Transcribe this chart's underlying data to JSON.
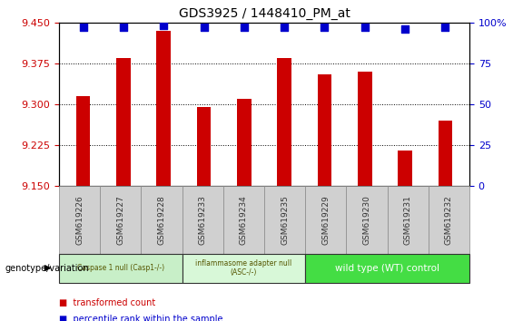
{
  "title": "GDS3925 / 1448410_PM_at",
  "samples": [
    "GSM619226",
    "GSM619227",
    "GSM619228",
    "GSM619233",
    "GSM619234",
    "GSM619235",
    "GSM619229",
    "GSM619230",
    "GSM619231",
    "GSM619232"
  ],
  "red_values": [
    9.315,
    9.385,
    9.435,
    9.295,
    9.31,
    9.385,
    9.355,
    9.36,
    9.215,
    9.27
  ],
  "blue_values": [
    97,
    97,
    98,
    97,
    97,
    97,
    97,
    97,
    96,
    97
  ],
  "ylim": [
    9.15,
    9.45
  ],
  "y2lim": [
    0,
    100
  ],
  "yticks": [
    9.15,
    9.225,
    9.3,
    9.375,
    9.45
  ],
  "y2ticks": [
    0,
    25,
    50,
    75,
    100
  ],
  "groups": [
    {
      "label": "Caspase 1 null (Casp1-/-)",
      "start": 0,
      "end": 3,
      "color": "#c8efc8"
    },
    {
      "label": "inflammasome adapter null\n(ASC-/-)",
      "start": 3,
      "end": 6,
      "color": "#d8f8d8"
    },
    {
      "label": "wild type (WT) control",
      "start": 6,
      "end": 10,
      "color": "#44dd44"
    }
  ],
  "bar_color": "#cc0000",
  "dot_color": "#0000cc",
  "ytick_color": "#cc0000",
  "y2tick_color": "#0000cc",
  "legend_red_label": "transformed count",
  "legend_blue_label": "percentile rank within the sample",
  "genotype_label": "genotype/variation",
  "bar_width": 0.35,
  "dot_size": 40,
  "sample_box_color": "#d0d0d0",
  "sample_text_color": "#333333"
}
